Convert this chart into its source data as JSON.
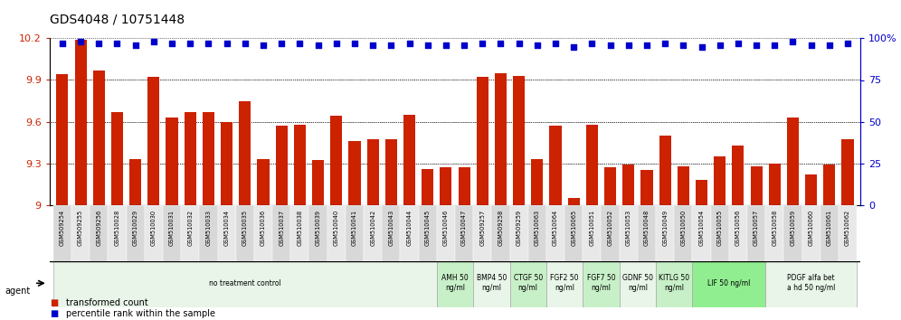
{
  "title": "GDS4048 / 10751448",
  "categories": [
    "GSM509254",
    "GSM509255",
    "GSM509256",
    "GSM510028",
    "GSM510029",
    "GSM510030",
    "GSM510031",
    "GSM510032",
    "GSM510033",
    "GSM510034",
    "GSM510035",
    "GSM510036",
    "GSM510037",
    "GSM510038",
    "GSM510039",
    "GSM510040",
    "GSM510041",
    "GSM510042",
    "GSM510043",
    "GSM510044",
    "GSM510045",
    "GSM510046",
    "GSM510047",
    "GSM509257",
    "GSM509258",
    "GSM509259",
    "GSM510063",
    "GSM510064",
    "GSM510065",
    "GSM510051",
    "GSM510052",
    "GSM510053",
    "GSM510048",
    "GSM510049",
    "GSM510050",
    "GSM510054",
    "GSM510055",
    "GSM510056",
    "GSM510057",
    "GSM510058",
    "GSM510059",
    "GSM510060",
    "GSM510061",
    "GSM510062"
  ],
  "bar_values": [
    9.94,
    10.19,
    9.97,
    9.67,
    9.33,
    9.92,
    9.63,
    9.67,
    9.67,
    9.6,
    9.75,
    9.33,
    9.57,
    9.58,
    9.32,
    9.64,
    9.46,
    9.47,
    9.47,
    9.65,
    9.26,
    9.27,
    9.27,
    9.92,
    9.95,
    9.93,
    9.33,
    9.57,
    9.05,
    9.58,
    9.27,
    9.29,
    9.25,
    9.5,
    9.28,
    9.18,
    9.35,
    9.43,
    9.28,
    9.3,
    9.63,
    9.22,
    9.29,
    9.47
  ],
  "percentile_values": [
    97,
    98,
    97,
    97,
    96,
    98,
    97,
    97,
    97,
    97,
    97,
    96,
    97,
    97,
    96,
    97,
    97,
    96,
    96,
    97,
    96,
    96,
    96,
    97,
    97,
    97,
    96,
    97,
    95,
    97,
    96,
    96,
    96,
    97,
    96,
    95,
    96,
    97,
    96,
    96,
    98,
    96,
    96,
    97
  ],
  "groups": [
    {
      "label": "no treatment control",
      "start": 0,
      "end": 21,
      "color": "#e8f5e8"
    },
    {
      "label": "AMH 50\nng/ml",
      "start": 21,
      "end": 23,
      "color": "#c8f0c8"
    },
    {
      "label": "BMP4 50\nng/ml",
      "start": 23,
      "end": 25,
      "color": "#e8f5e8"
    },
    {
      "label": "CTGF 50\nng/ml",
      "start": 25,
      "end": 27,
      "color": "#c8f0c8"
    },
    {
      "label": "FGF2 50\nng/ml",
      "start": 27,
      "end": 29,
      "color": "#e8f5e8"
    },
    {
      "label": "FGF7 50\nng/ml",
      "start": 29,
      "end": 31,
      "color": "#c8f0c8"
    },
    {
      "label": "GDNF 50\nng/ml",
      "start": 31,
      "end": 33,
      "color": "#e8f5e8"
    },
    {
      "label": "KITLG 50\nng/ml",
      "start": 33,
      "end": 35,
      "color": "#c8f0c8"
    },
    {
      "label": "LIF 50 ng/ml",
      "start": 35,
      "end": 39,
      "color": "#90ee90"
    },
    {
      "label": "PDGF alfa bet\na hd 50 ng/ml",
      "start": 39,
      "end": 44,
      "color": "#e8f5e8"
    }
  ],
  "ylim": [
    9.0,
    10.2
  ],
  "y_ticks_left": [
    9.0,
    9.3,
    9.6,
    9.9,
    10.2
  ],
  "y_tick_labels_left": [
    "9",
    "9.3",
    "9.6",
    "9.9",
    "10.2"
  ],
  "y2_ticks": [
    0,
    25,
    50,
    75,
    100
  ],
  "y2_tick_labels": [
    "0",
    "25",
    "50",
    "75",
    "100%"
  ],
  "bar_color": "#cc2200",
  "dot_color": "#0000cc",
  "background_color": "#ffffff",
  "title_fontsize": 10,
  "agent_label": "agent"
}
